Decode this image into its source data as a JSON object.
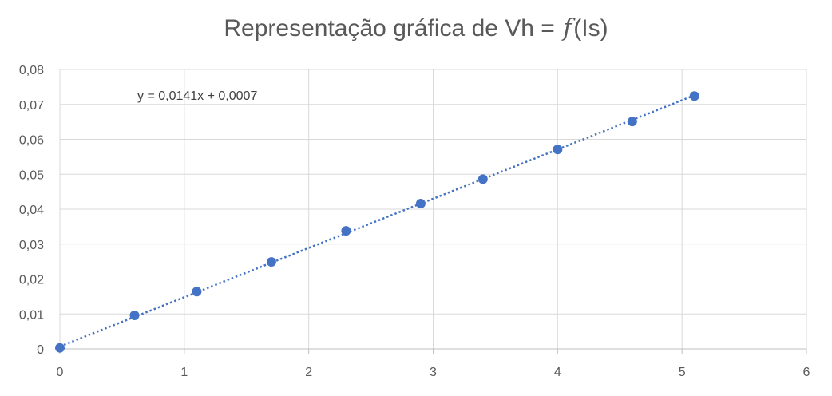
{
  "chart_data": {
    "type": "scatter",
    "title": {
      "prefix": "Representação gráfica de Vh = ",
      "function": "f",
      "suffix": "(Is)"
    },
    "xlabel": "",
    "ylabel": "",
    "xlim": [
      0,
      6
    ],
    "ylim": [
      0,
      0.08
    ],
    "x_ticks": [
      "0",
      "1",
      "2",
      "3",
      "4",
      "5",
      "6"
    ],
    "y_ticks": [
      "0",
      "0,01",
      "0,02",
      "0,03",
      "0,04",
      "0,05",
      "0,06",
      "0,07",
      "0,08"
    ],
    "grid": true,
    "legend": "none",
    "series": [
      {
        "x": [
          0,
          0.6,
          1.1,
          1.7,
          2.3,
          2.9,
          3.4,
          4.0,
          4.6,
          5.1
        ],
        "y": [
          0.0003,
          0.0096,
          0.0164,
          0.0249,
          0.0338,
          0.0416,
          0.0486,
          0.0571,
          0.0651,
          0.0724
        ],
        "color": "#4472C4"
      }
    ],
    "trendline": {
      "type": "linear",
      "slope": 0.0141,
      "intercept": 0.0007,
      "x_range": [
        0,
        5.1
      ],
      "style": "dotted",
      "color": "#4472C4",
      "equation_label": "y = 0,0141x + 0,0007"
    },
    "colors": {
      "grid": "#d9d9d9",
      "axis": "#bfbfbf",
      "text": "#595959"
    }
  }
}
